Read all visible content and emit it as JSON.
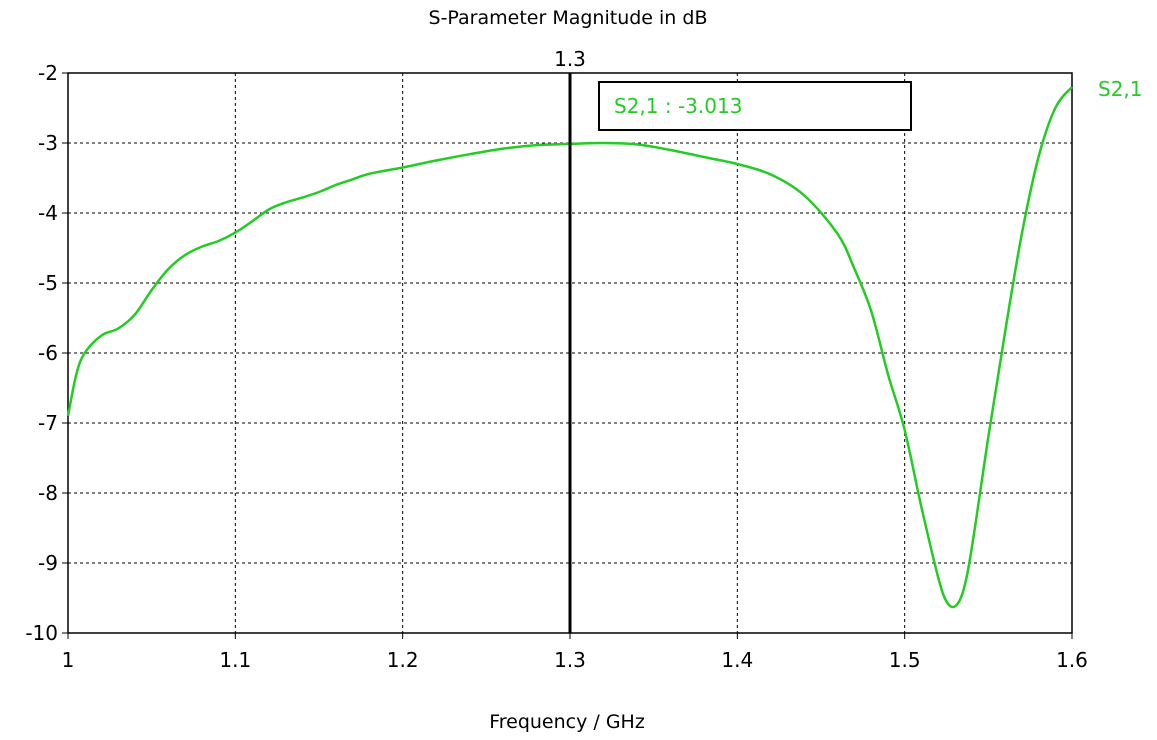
{
  "chart_data": {
    "type": "line",
    "title": "S-Parameter Magnitude in dB",
    "xlabel": "Frequency / GHz",
    "ylabel": "",
    "xlim": [
      1.0,
      1.6
    ],
    "ylim": [
      -10,
      -2
    ],
    "x_ticks": [
      "1",
      "1.1",
      "1.2",
      "1.3",
      "1.4",
      "1.5",
      "1.6"
    ],
    "y_ticks": [
      "-2",
      "-3",
      "-4",
      "-5",
      "-6",
      "-7",
      "-8",
      "-9",
      "-10"
    ],
    "grid": true,
    "series_color": "#22cc22",
    "series": [
      {
        "name": "S2,1",
        "x": [
          1.0,
          1.005,
          1.01,
          1.02,
          1.03,
          1.04,
          1.05,
          1.06,
          1.07,
          1.08,
          1.09,
          1.1,
          1.11,
          1.12,
          1.13,
          1.14,
          1.15,
          1.16,
          1.17,
          1.18,
          1.2,
          1.22,
          1.24,
          1.26,
          1.28,
          1.3,
          1.32,
          1.34,
          1.36,
          1.38,
          1.4,
          1.42,
          1.44,
          1.46,
          1.47,
          1.48,
          1.49,
          1.5,
          1.51,
          1.52,
          1.525,
          1.53,
          1.535,
          1.54,
          1.55,
          1.56,
          1.57,
          1.58,
          1.59,
          1.6
        ],
        "y": [
          -6.9,
          -6.3,
          -6.0,
          -5.75,
          -5.65,
          -5.45,
          -5.1,
          -4.8,
          -4.6,
          -4.48,
          -4.4,
          -4.28,
          -4.12,
          -3.95,
          -3.85,
          -3.78,
          -3.7,
          -3.6,
          -3.52,
          -3.44,
          -3.35,
          -3.25,
          -3.16,
          -3.08,
          -3.03,
          -3.013,
          -3.0,
          -3.02,
          -3.1,
          -3.2,
          -3.3,
          -3.45,
          -3.75,
          -4.3,
          -4.8,
          -5.4,
          -6.3,
          -7.1,
          -8.2,
          -9.2,
          -9.55,
          -9.62,
          -9.4,
          -8.8,
          -7.2,
          -5.7,
          -4.3,
          -3.2,
          -2.5,
          -2.2
        ]
      }
    ],
    "marker": {
      "x": 1.3,
      "x_label": "1.3",
      "readout": "S2,1 : -3.013"
    }
  }
}
